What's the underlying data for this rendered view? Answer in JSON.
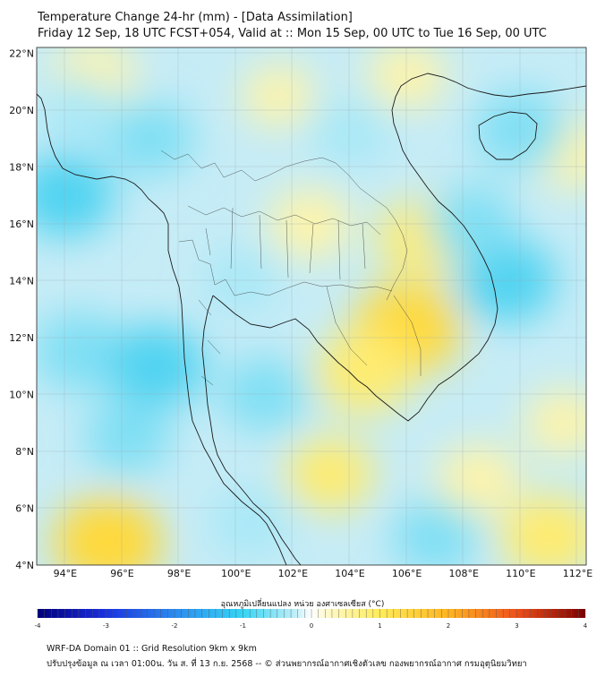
{
  "title_line1": "Temperature Change 24-hr (mm) - [Data Assimilation]",
  "title_line2": "Friday 12 Sep, 18 UTC FCST+054, Valid at :: Mon 15 Sep, 00 UTC to Tue 16 Sep, 00 UTC",
  "colorbar_label": "อุณหภูมิเปลี่ยนแปลง หน่วย องศาเซลเซียส (°C)",
  "footer_line1": "WRF-DA Domain 01 :: Grid Resolution 9km x 9km",
  "footer_line2": "ปรับปรุงข้อมูล ณ เวลา 01:00น. วัน ส. ที่ 13 ก.ย. 2568 -- © ส่วนพยากรณ์อากาศเชิงตัวเลข กองพยากรณ์อากาศ กรมอุตุนิยมวิทยา",
  "chart_data": {
    "type": "heatmap",
    "variable": "24-hr temperature change (°C)",
    "lon_range": [
      93,
      112.3
    ],
    "lat_range": [
      4,
      22.2
    ],
    "lon_ticks": [
      "94°E",
      "96°E",
      "98°E",
      "100°E",
      "102°E",
      "104°E",
      "106°E",
      "108°E",
      "110°E",
      "112°E"
    ],
    "lat_ticks": [
      "22°N",
      "20°N",
      "18°N",
      "16°N",
      "14°N",
      "12°N",
      "10°N",
      "8°N",
      "6°N",
      "4°N"
    ],
    "colorbar_ticks": [
      "-4",
      "-3",
      "-2",
      "-1",
      "0",
      "1",
      "2",
      "3",
      "4"
    ],
    "colorbar_range": [
      -4,
      4
    ],
    "anomalies": [
      {
        "name": "warm-east-cambodia",
        "lon": 106.0,
        "lat": 12.3,
        "value": 1.1
      },
      {
        "name": "warm-cambodia-south",
        "lon": 104.5,
        "lat": 10.8,
        "value": 0.9
      },
      {
        "name": "warm-east-thailand",
        "lon": 106.6,
        "lat": 15.5,
        "value": 0.8
      },
      {
        "name": "warm-laos",
        "lon": 102.6,
        "lat": 16.0,
        "value": 0.6
      },
      {
        "name": "warm-southwest",
        "lon": 95.5,
        "lat": 4.8,
        "value": 1.1
      },
      {
        "name": "warm-southeast",
        "lon": 111.0,
        "lat": 5.0,
        "value": 0.9
      },
      {
        "name": "warm-peninsula-gulf",
        "lon": 103.3,
        "lat": 7.2,
        "value": 0.7
      },
      {
        "name": "warm-mid-sea",
        "lon": 108.5,
        "lat": 7.0,
        "value": 0.6
      },
      {
        "name": "warm-northwest",
        "lon": 95.0,
        "lat": 21.2,
        "value": 0.6
      },
      {
        "name": "warm-north-laos",
        "lon": 101.5,
        "lat": 20.5,
        "value": 0.4
      },
      {
        "name": "warm-north-vn",
        "lon": 106.0,
        "lat": 21.2,
        "value": 0.5
      },
      {
        "name": "warm-east-coast",
        "lon": 111.8,
        "lat": 18.5,
        "value": 0.6
      },
      {
        "name": "warm-borneo-edge",
        "lon": 111.5,
        "lat": 9.0,
        "value": 0.5
      },
      {
        "name": "cool-andaman-west",
        "lon": 94.5,
        "lat": 11.5,
        "value": -0.8
      },
      {
        "name": "cool-andaman",
        "lon": 97.2,
        "lat": 11.0,
        "value": -0.9
      },
      {
        "name": "cool-bay-north",
        "lon": 94.0,
        "lat": 17.0,
        "value": -0.9
      },
      {
        "name": "cool-myanmar",
        "lon": 97.0,
        "lat": 19.0,
        "value": -0.7
      },
      {
        "name": "cool-gulf-south",
        "lon": 101.0,
        "lat": 10.0,
        "value": -0.7
      },
      {
        "name": "cool-south-china-sea",
        "lon": 109.5,
        "lat": 14.0,
        "value": -0.9
      },
      {
        "name": "cool-hainan",
        "lon": 110.0,
        "lat": 19.3,
        "value": -0.8
      },
      {
        "name": "cool-central-vn",
        "lon": 108.3,
        "lat": 16.0,
        "value": -0.7
      },
      {
        "name": "cool-laos-north",
        "lon": 104.0,
        "lat": 19.2,
        "value": -0.6
      },
      {
        "name": "cool-andaman-south",
        "lon": 96.2,
        "lat": 8.5,
        "value": -0.7
      },
      {
        "name": "cool-malaya",
        "lon": 100.5,
        "lat": 5.5,
        "value": -0.6
      },
      {
        "name": "cool-east-sea-south",
        "lon": 107.0,
        "lat": 5.0,
        "value": -0.7
      },
      {
        "name": "cool-thailand-central",
        "lon": 100.2,
        "lat": 14.0,
        "value": -0.5
      },
      {
        "name": "cool-myanmar-west",
        "lon": 94.5,
        "lat": 20.0,
        "value": -0.5
      }
    ]
  }
}
